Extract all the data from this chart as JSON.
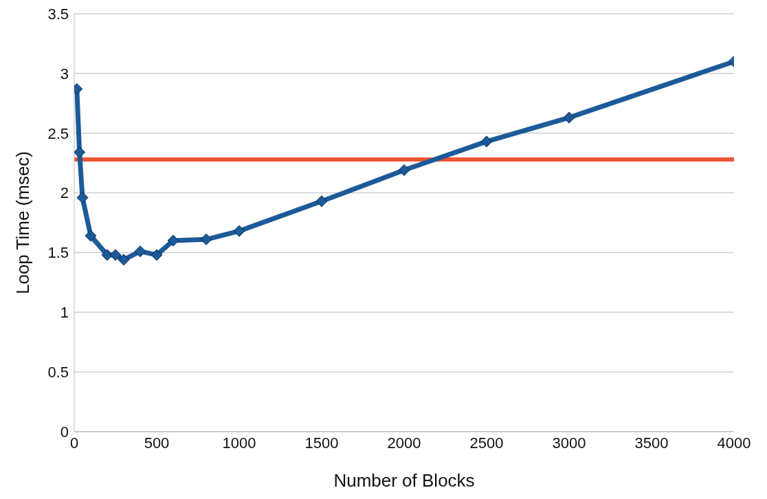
{
  "chart_data": {
    "type": "line",
    "xlabel": "Number of Blocks",
    "ylabel": "Loop Time (msec)",
    "x": [
      16,
      32,
      50,
      100,
      200,
      250,
      300,
      400,
      500,
      600,
      800,
      1000,
      1500,
      2000,
      2500,
      3000,
      4000
    ],
    "series": [
      {
        "color": "#1c5a99",
        "values": [
          2.87,
          2.34,
          1.96,
          1.64,
          1.48,
          1.48,
          1.44,
          1.51,
          1.48,
          1.6,
          1.61,
          1.68,
          1.93,
          2.19,
          2.43,
          2.63,
          3.1
        ]
      }
    ],
    "xlim": [
      0,
      4000
    ],
    "xticks": [
      0,
      500,
      1000,
      1500,
      2000,
      2500,
      3000,
      3500,
      4000
    ],
    "ylim": [
      0,
      3.5
    ],
    "yticks": [
      0,
      0.5,
      1,
      1.5,
      2,
      2.5,
      3,
      3.5
    ],
    "ref_lines": [
      {
        "axis": "y",
        "value": 2.28,
        "color": "#ee5533"
      }
    ],
    "grid": "y",
    "marker": "diamond",
    "line_style": "solid",
    "legend": false
  }
}
